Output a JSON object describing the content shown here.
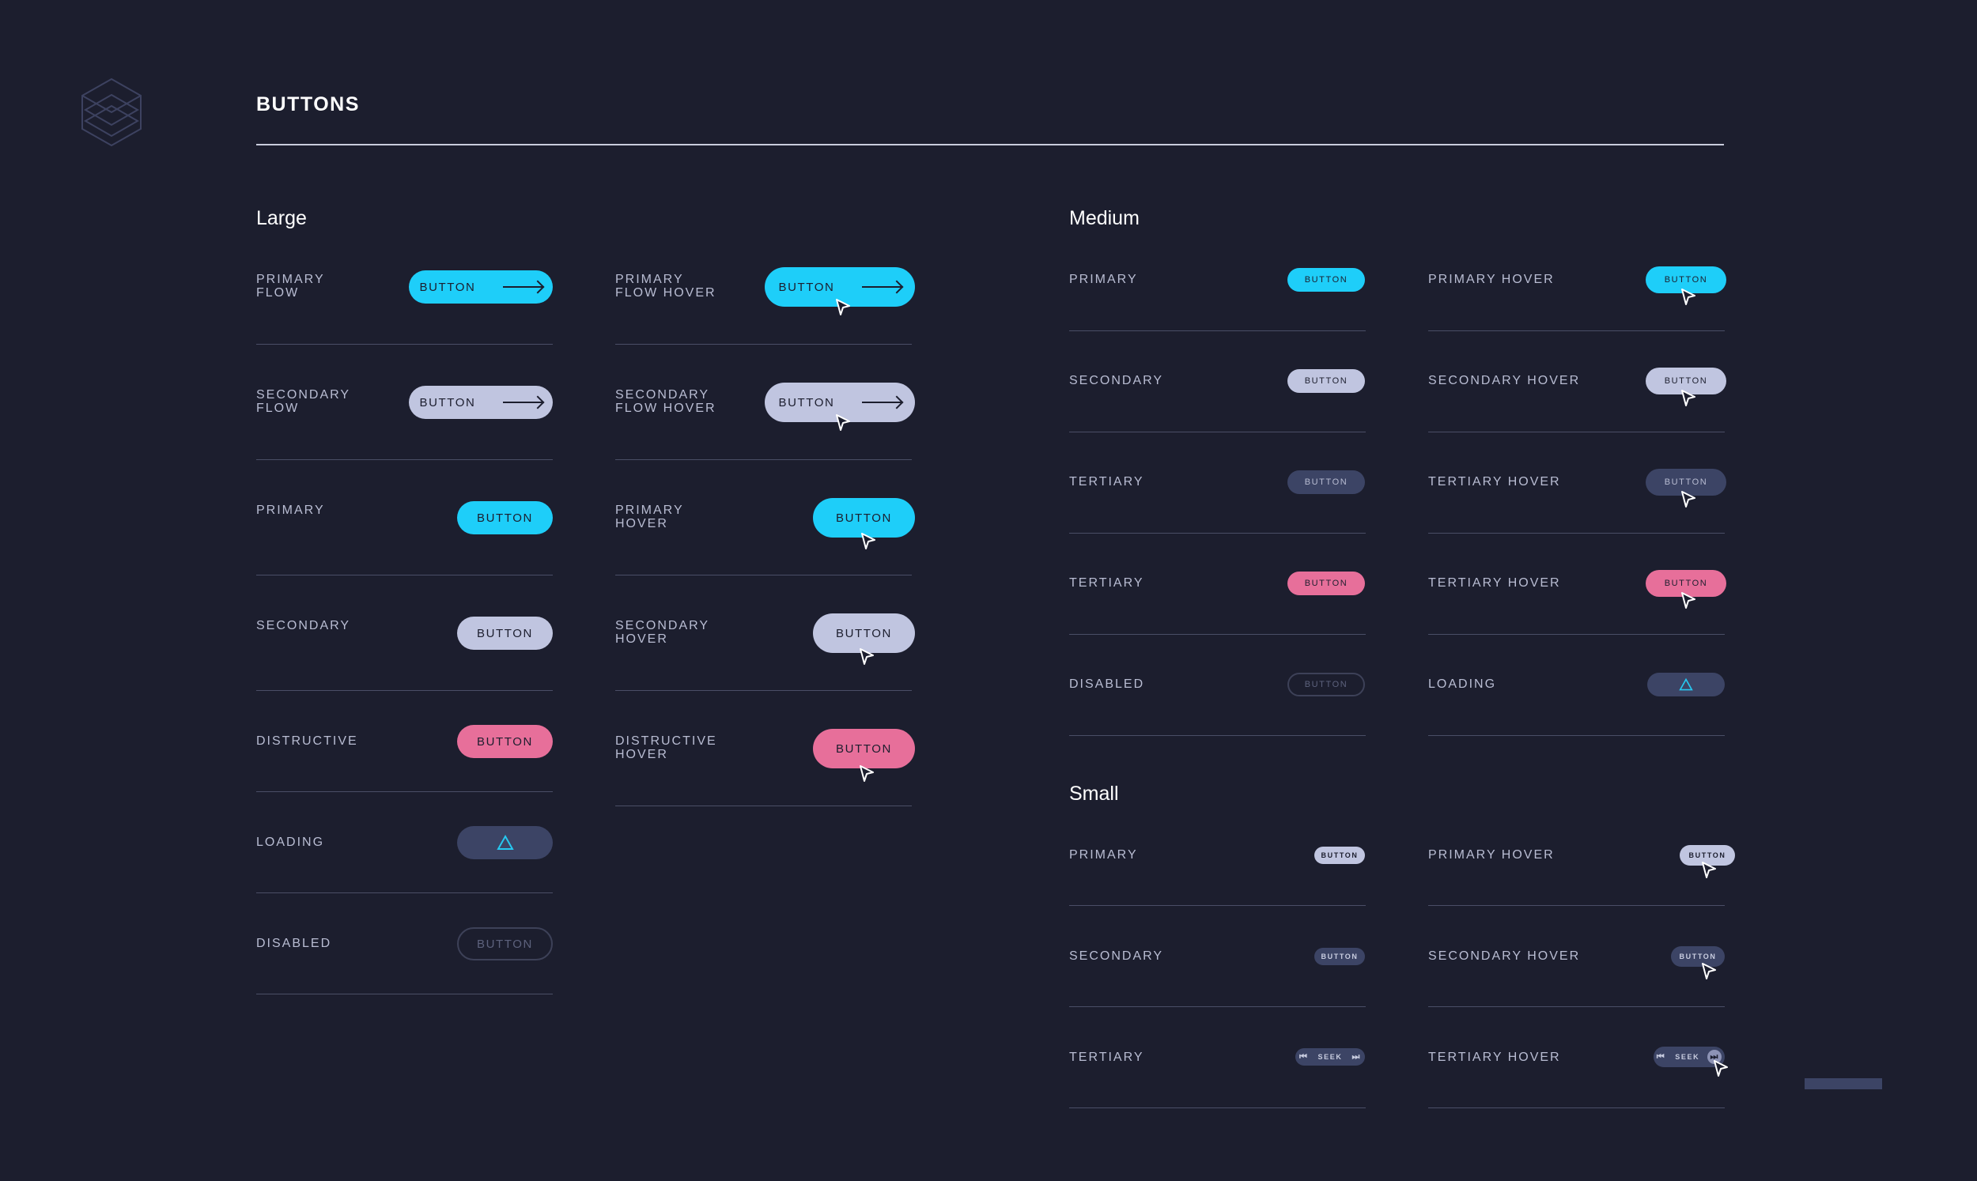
{
  "page": {
    "title": "BUTTONS"
  },
  "colors": {
    "background": "#1c1e2e",
    "primary": "#1ecef9",
    "secondary": "#c0c5e0",
    "tertiary": "#3c4465",
    "destructive": "#e76f9a",
    "loading": "#3c4465",
    "disabled_border": "#3d4158"
  },
  "large": {
    "title": "Large",
    "rows": [
      {
        "label": "PRIMARY\nFLOW",
        "button": "BUTTON"
      },
      {
        "label": "PRIMARY\nFLOW HOVER",
        "button": "BUTTON"
      },
      {
        "label": "SECONDARY\nFLOW",
        "button": "BUTTON"
      },
      {
        "label": "SECONDARY\nFLOW HOVER",
        "button": "BUTTON"
      },
      {
        "label": "PRIMARY",
        "button": "BUTTON"
      },
      {
        "label": "PRIMARY\nHOVER",
        "button": "BUTTON"
      },
      {
        "label": "SECONDARY",
        "button": "BUTTON"
      },
      {
        "label": "SECONDARY\nHOVER",
        "button": "BUTTON"
      },
      {
        "label": "DISTRUCTIVE",
        "button": "BUTTON"
      },
      {
        "label": "DISTRUCTIVE\nHOVER",
        "button": "BUTTON"
      },
      {
        "label": "LOADING"
      },
      {
        "label": "DISABLED",
        "button": "BUTTON"
      }
    ]
  },
  "medium": {
    "title": "Medium",
    "rows": [
      {
        "label": "PRIMARY",
        "button": "BUTTON"
      },
      {
        "label": "PRIMARY HOVER",
        "button": "BUTTON"
      },
      {
        "label": "SECONDARY",
        "button": "BUTTON"
      },
      {
        "label": "SECONDARY HOVER",
        "button": "BUTTON"
      },
      {
        "label": "TERTIARY",
        "button": "BUTTON"
      },
      {
        "label": "TERTIARY HOVER",
        "button": "BUTTON"
      },
      {
        "label": "TERTIARY",
        "button": "BUTTON"
      },
      {
        "label": "TERTIARY HOVER",
        "button": "BUTTON"
      },
      {
        "label": "DISABLED",
        "button": "BUTTON"
      },
      {
        "label": "LOADING"
      }
    ]
  },
  "small": {
    "title": "Small",
    "rows": [
      {
        "label": "PRIMARY",
        "button": "BUTTON"
      },
      {
        "label": "PRIMARY HOVER",
        "button": "BUTTON"
      },
      {
        "label": "SECONDARY",
        "button": "BUTTON"
      },
      {
        "label": "SECONDARY HOVER",
        "button": "BUTTON"
      },
      {
        "label": "TERTIARY",
        "button": "SEEK"
      },
      {
        "label": "TERTIARY HOVER",
        "button": "SEEK"
      }
    ]
  }
}
